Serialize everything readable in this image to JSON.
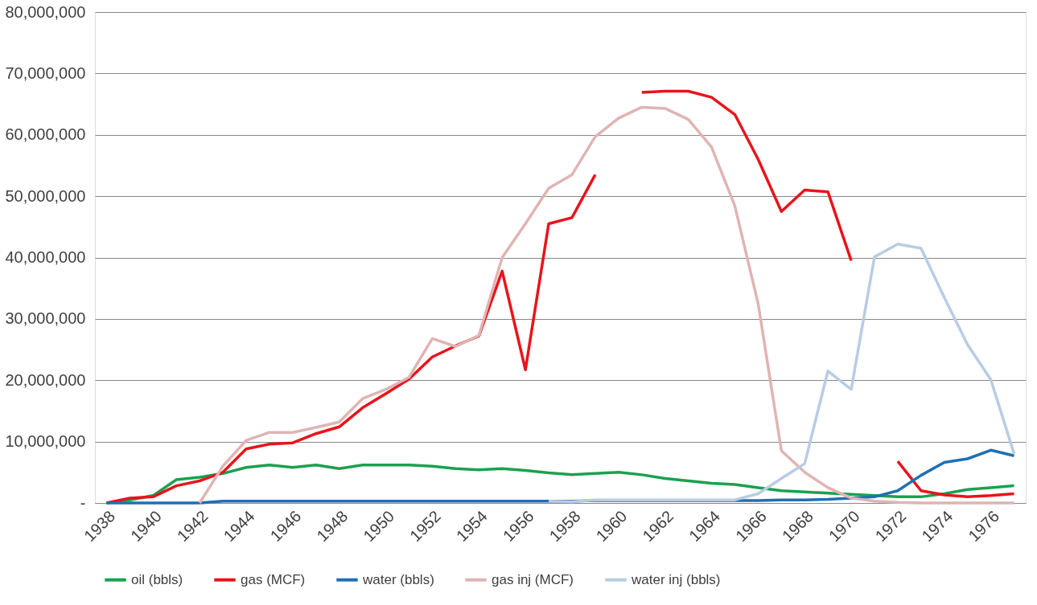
{
  "chart_data": {
    "type": "line",
    "categories": [
      "1938",
      null,
      "1940",
      null,
      "1942",
      null,
      "1944",
      null,
      "1946",
      null,
      "1948",
      null,
      "1950",
      null,
      "1952",
      null,
      "1954",
      null,
      "1956",
      null,
      "1958",
      null,
      "1960",
      null,
      "1962",
      null,
      "1964",
      null,
      "1966",
      null,
      "1968",
      null,
      "1970",
      null,
      "1972",
      null,
      "1974",
      null,
      "1976",
      null
    ],
    "ylim": [
      0,
      80000000
    ],
    "yticks": [
      {
        "value": 0,
        "label": "-"
      },
      {
        "value": 10000000,
        "label": "10,000,000"
      },
      {
        "value": 20000000,
        "label": "20,000,000"
      },
      {
        "value": 30000000,
        "label": "30,000,000"
      },
      {
        "value": 40000000,
        "label": "40,000,000"
      },
      {
        "value": 50000000,
        "label": "50,000,000"
      },
      {
        "value": 60000000,
        "label": "60,000,000"
      },
      {
        "value": 70000000,
        "label": "70,000,000"
      },
      {
        "value": 80000000,
        "label": "80,000,000"
      }
    ],
    "grid": "y",
    "legend": "bottom",
    "marker": "none",
    "line_style": "solid",
    "series": [
      {
        "name": "oil (bbls)",
        "color": "#1aa14f",
        "values": [
          0,
          500000,
          1200000,
          3800000,
          4200000,
          4800000,
          5800000,
          6200000,
          5800000,
          6200000,
          5600000,
          6200000,
          6200000,
          6200000,
          6000000,
          5600000,
          5400000,
          5600000,
          5300000,
          4900000,
          4600000,
          4800000,
          5000000,
          4600000,
          4000000,
          3600000,
          3200000,
          3000000,
          2500000,
          2000000,
          1800000,
          1600000,
          1400000,
          1200000,
          1000000,
          1000000,
          1500000,
          2200000,
          2500000,
          2800000
        ]
      },
      {
        "name": "gas (MCF)",
        "color": "#e8141b",
        "values": [
          0,
          800000,
          1000000,
          2800000,
          3600000,
          5000000,
          8800000,
          9600000,
          9800000,
          11300000,
          12400000,
          15500000,
          17800000,
          20200000,
          23800000,
          25600000,
          27200000,
          37800000,
          21700000,
          45500000,
          46500000,
          53500000,
          null,
          66900000,
          67100000,
          67100000,
          66100000,
          63300000,
          56000000,
          47500000,
          51000000,
          50700000,
          39500000,
          null,
          6800000,
          2000000,
          1300000,
          1000000,
          1200000,
          1500000
        ]
      },
      {
        "name": "water (bbls)",
        "color": "#1f6fb5",
        "values": [
          0,
          0,
          0,
          0,
          0,
          300000,
          300000,
          300000,
          300000,
          300000,
          300000,
          300000,
          300000,
          300000,
          300000,
          300000,
          300000,
          300000,
          300000,
          300000,
          300000,
          400000,
          400000,
          400000,
          400000,
          400000,
          400000,
          400000,
          400000,
          500000,
          500000,
          600000,
          800000,
          1000000,
          2000000,
          4500000,
          6600000,
          7200000,
          8600000,
          7700000
        ]
      },
      {
        "name": "gas inj (MCF)",
        "color": "#e0b4b4",
        "values": [
          null,
          null,
          null,
          null,
          0,
          6000000,
          10200000,
          11500000,
          11500000,
          12300000,
          13200000,
          17000000,
          18500000,
          20500000,
          26800000,
          25500000,
          27300000,
          40000000,
          45500000,
          51300000,
          53500000,
          59700000,
          62700000,
          64500000,
          64300000,
          62500000,
          58000000,
          48400000,
          32500000,
          8500000,
          5000000,
          2500000,
          800000,
          300000,
          100000,
          0,
          0,
          0,
          0,
          0
        ]
      },
      {
        "name": "water inj (bbls)",
        "color": "#b8cce4",
        "values": [
          null,
          null,
          null,
          null,
          null,
          null,
          null,
          null,
          null,
          null,
          null,
          null,
          null,
          null,
          null,
          null,
          null,
          null,
          null,
          300000,
          200000,
          500000,
          500000,
          500000,
          500000,
          500000,
          500000,
          500000,
          1500000,
          4000000,
          6400000,
          21500000,
          18500000,
          40100000,
          42200000,
          41500000,
          33500000,
          25800000,
          20100000,
          8000000
        ]
      }
    ]
  }
}
